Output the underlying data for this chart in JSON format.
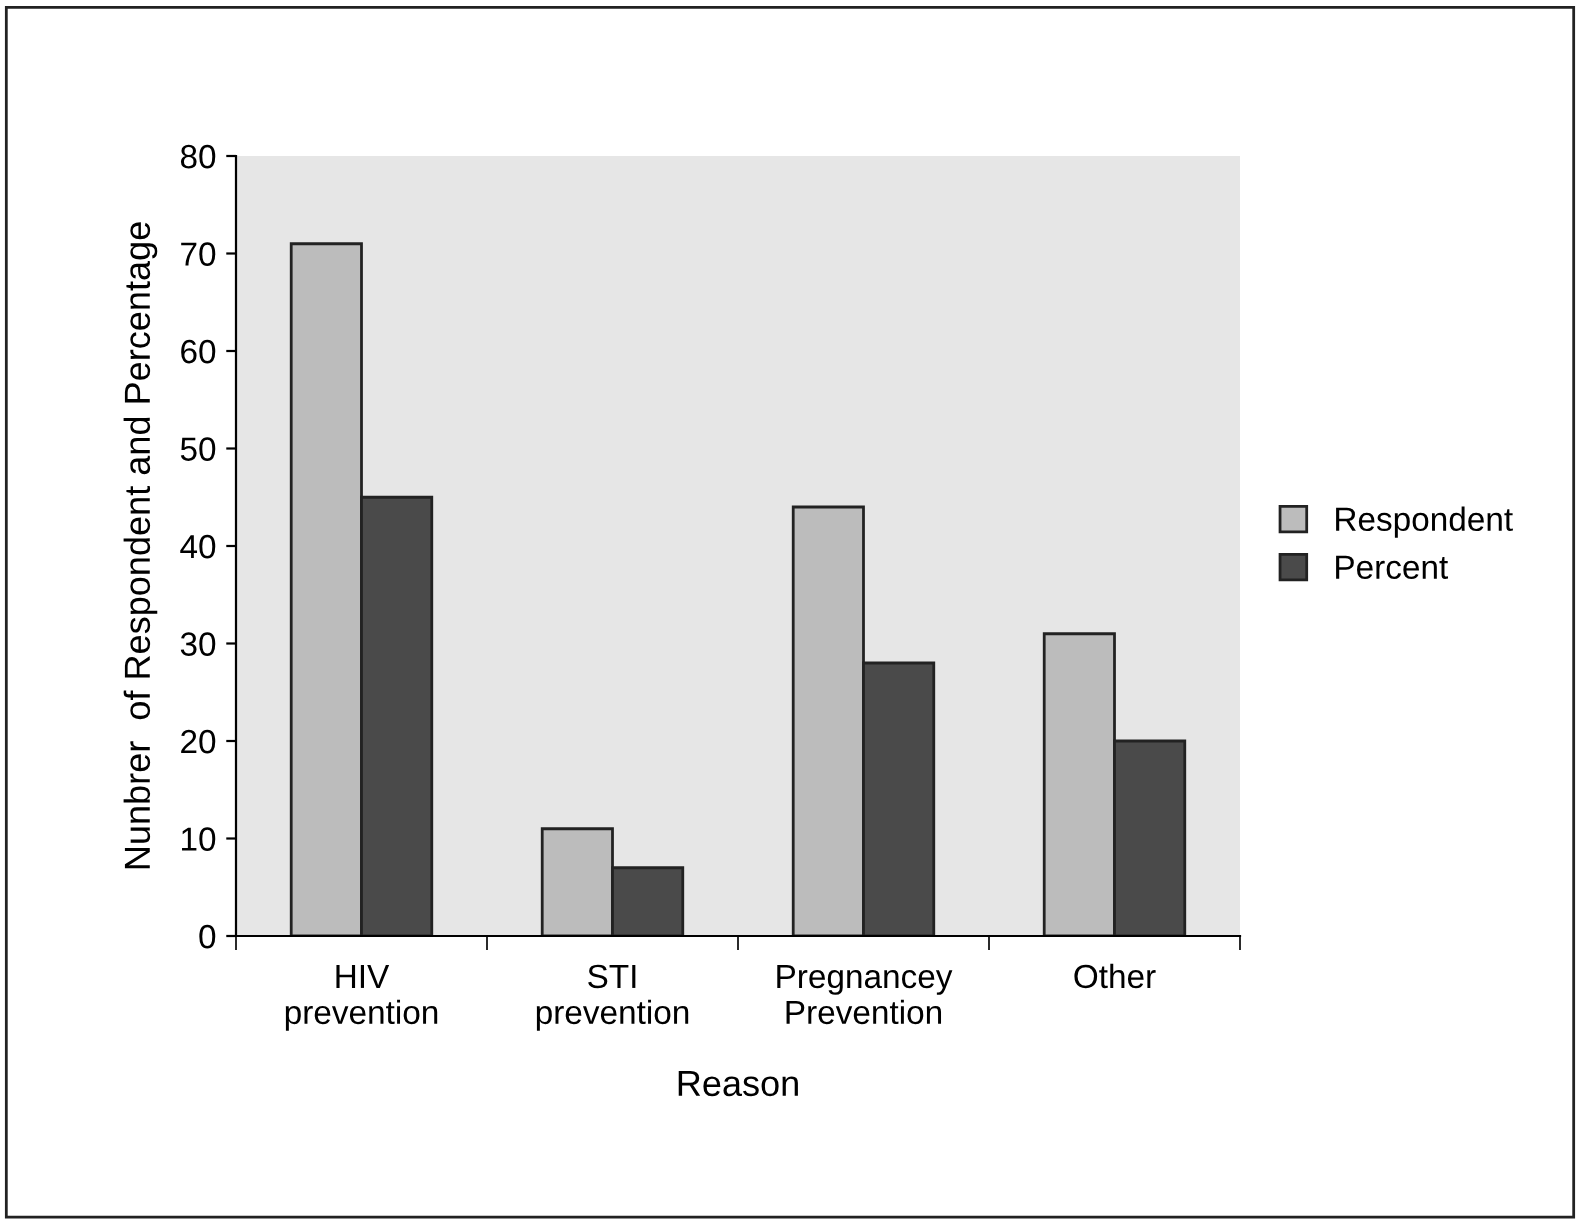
{
  "chart_data": {
    "type": "bar",
    "xlabel": "Reason",
    "ylabel": "Nunbrer  of Respondent and Percentage",
    "categories": [
      "HIV\nprevention",
      "STI\nprevention",
      "Pregnancey\nPrevention",
      "Other"
    ],
    "series": [
      {
        "name": "Respondent",
        "color": "#bcbcbc",
        "values": [
          71,
          11,
          44,
          31
        ]
      },
      {
        "name": "Percent",
        "color": "#4a4a4a",
        "values": [
          45,
          7,
          28,
          20
        ]
      }
    ],
    "ylim": [
      0,
      80
    ],
    "yticks": [
      0,
      10,
      20,
      30,
      40,
      50,
      60,
      70,
      80
    ],
    "grid": false,
    "legend": "right"
  }
}
